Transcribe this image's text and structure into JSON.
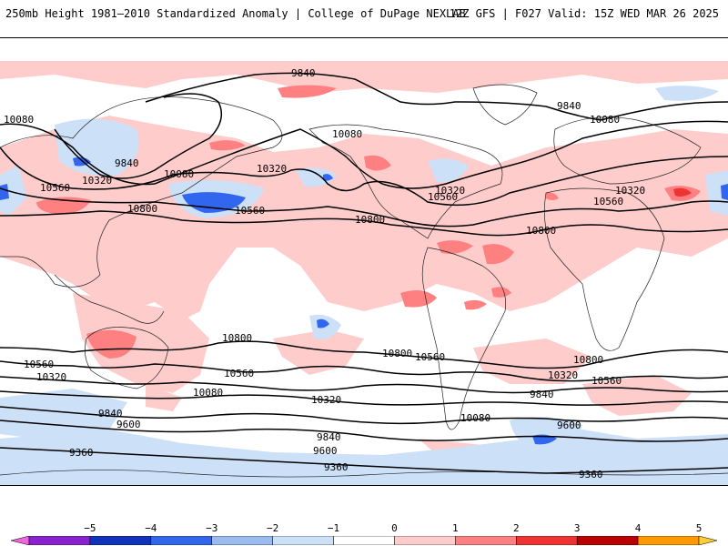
{
  "header": {
    "left_title": "250mb Height 1981–2010 Standardized Anomaly | College of DuPage NEXLAB",
    "right_title": "12Z GFS | F027 Valid: 15Z WED MAR 26 2025"
  },
  "colorbar": {
    "ticks": [
      "−5",
      "−4",
      "−3",
      "−2",
      "−1",
      "0",
      "1",
      "2",
      "3",
      "4",
      "5"
    ],
    "colors": [
      "#ee66dd",
      "#8822cc",
      "#1133bb",
      "#3366ee",
      "#99bbee",
      "#cce0f8",
      "#ffffff",
      "#ffcccc",
      "#ff8080",
      "#ee3333",
      "#bb0000",
      "#ff9900",
      "#ffcc33"
    ]
  },
  "contour_labels": [
    {
      "text": "9840",
      "id": "label-9840-npac"
    },
    {
      "text": "9840",
      "id": "label-9840-natl"
    },
    {
      "text": "9840",
      "id": "label-9840-asia"
    },
    {
      "text": "10080",
      "id": "label-10080-west"
    },
    {
      "text": "10080",
      "id": "label-10080-pac"
    },
    {
      "text": "10080",
      "id": "label-10080-na"
    },
    {
      "text": "10080",
      "id": "label-10080-eur"
    },
    {
      "text": "10320",
      "id": "label-10320-asia"
    },
    {
      "text": "10320",
      "id": "label-10320-pac"
    },
    {
      "text": "10320",
      "id": "label-10320-na"
    },
    {
      "text": "10320",
      "id": "label-10320-eur"
    },
    {
      "text": "10560",
      "id": "label-10560-west"
    },
    {
      "text": "10560",
      "id": "label-10560-pac"
    },
    {
      "text": "10560",
      "id": "label-10560-na"
    },
    {
      "text": "10560",
      "id": "label-10560-eur"
    },
    {
      "text": "10800",
      "id": "label-10800-asia"
    },
    {
      "text": "10800",
      "id": "label-10800-atl"
    },
    {
      "text": "10800",
      "id": "label-10800-africa"
    },
    {
      "text": "10800",
      "id": "label-10800-spac"
    },
    {
      "text": "10800",
      "id": "label-10800-satl"
    },
    {
      "text": "10800",
      "id": "label-10800-sind"
    },
    {
      "text": "10560",
      "id": "label-10560-sw"
    },
    {
      "text": "10560",
      "id": "label-10560-spac"
    },
    {
      "text": "10560",
      "id": "label-10560-samer"
    },
    {
      "text": "10560",
      "id": "label-10560-sind"
    },
    {
      "text": "10320",
      "id": "label-10320-sw"
    },
    {
      "text": "10320",
      "id": "label-10320-spac"
    },
    {
      "text": "10320",
      "id": "label-10320-satl"
    },
    {
      "text": "10080",
      "id": "label-10080-spac"
    },
    {
      "text": "10080",
      "id": "label-10080-satl"
    },
    {
      "text": "9840",
      "id": "label-9840-sw"
    },
    {
      "text": "9840",
      "id": "label-9840-spac"
    },
    {
      "text": "9840",
      "id": "label-9840-satl"
    },
    {
      "text": "9600",
      "id": "label-9600-sw"
    },
    {
      "text": "9600",
      "id": "label-9600-spac"
    },
    {
      "text": "9600",
      "id": "label-9600-satl"
    },
    {
      "text": "9360",
      "id": "label-9360-sw"
    },
    {
      "text": "9360",
      "id": "label-9360-spac"
    },
    {
      "text": "9360",
      "id": "label-9360-satl"
    }
  ]
}
